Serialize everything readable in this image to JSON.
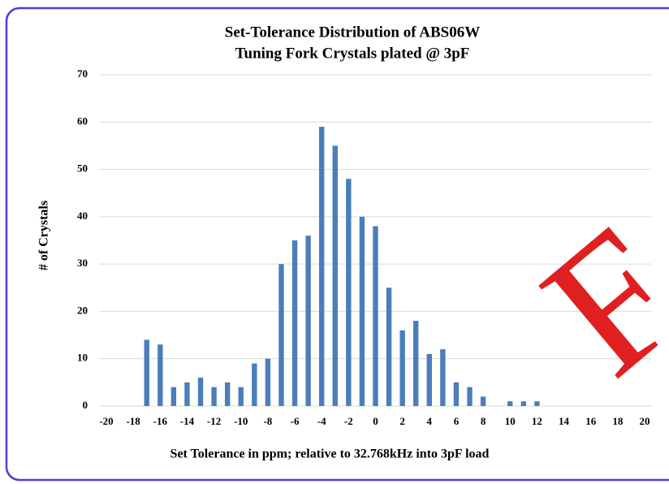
{
  "chart_data": {
    "type": "bar",
    "title": "Set-Tolerance Distribution  of ABS06W",
    "subtitle": "Tuning Fork Crystals plated @ 3pF",
    "x_label": "Set Tolerance in ppm;  relative to 32.768kHz into 3pF load",
    "y_label": "# of Crystals",
    "annotation": "F",
    "x": [
      -17,
      -16,
      -15,
      -14,
      -13,
      -12,
      -11,
      -10,
      -9,
      -8,
      -7,
      -6,
      -5,
      -4,
      -3,
      -2,
      -1,
      0,
      1,
      2,
      3,
      4,
      5,
      6,
      7,
      8,
      10,
      11,
      12
    ],
    "values": [
      14,
      13,
      4,
      5,
      6,
      4,
      5,
      4,
      9,
      10,
      30,
      35,
      36,
      59,
      55,
      48,
      40,
      38,
      25,
      16,
      18,
      11,
      12,
      5,
      4,
      2,
      1,
      1,
      1
    ],
    "color": "#4a7ebb",
    "xlim": [
      -20,
      20
    ],
    "xticks": [
      -20,
      -18,
      -16,
      -14,
      -12,
      -10,
      -8,
      -6,
      -4,
      -2,
      0,
      2,
      4,
      6,
      8,
      10,
      12,
      14,
      16,
      18,
      20
    ],
    "ylim": [
      0,
      70
    ],
    "yticks": [
      0,
      10,
      20,
      30,
      40,
      50,
      60,
      70
    ],
    "grid": true
  }
}
